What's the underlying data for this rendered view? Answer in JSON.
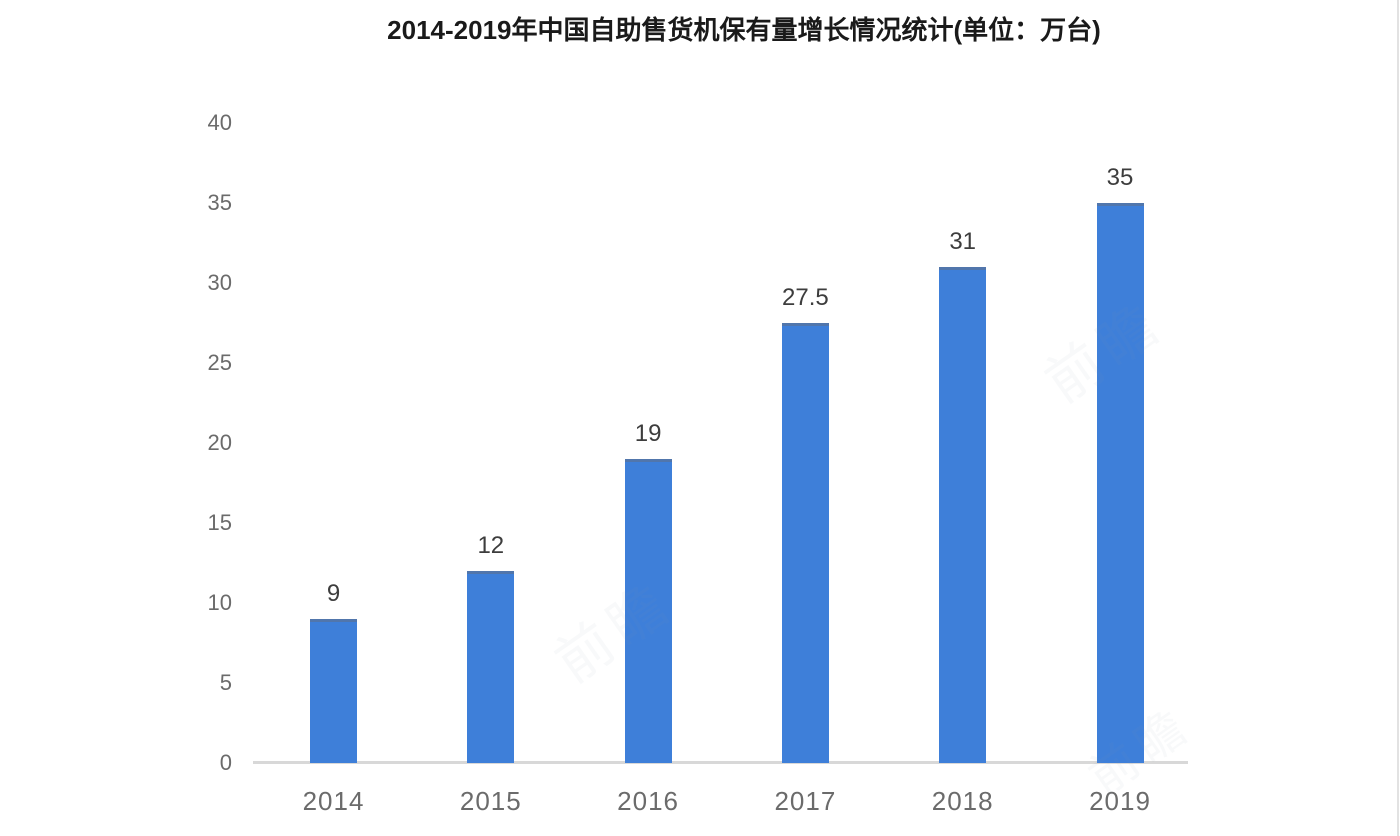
{
  "chart_data": {
    "type": "bar",
    "title": "2014-2019年中国自助售货机保有量增长情况统计(单位：万台)",
    "categories": [
      "2014",
      "2015",
      "2016",
      "2017",
      "2018",
      "2019"
    ],
    "values": [
      9,
      12,
      19,
      27.5,
      31,
      35
    ],
    "value_labels": [
      "9",
      "12",
      "19",
      "27.5",
      "31",
      "35"
    ],
    "xlabel": "",
    "ylabel": "",
    "ylim": [
      0,
      40
    ],
    "yticks": [
      0,
      5,
      10,
      15,
      20,
      25,
      30,
      35,
      40
    ],
    "grid": false,
    "legend": false,
    "bar_color": "#3e7fd9",
    "bar_top_edge_color": "#607086",
    "axis_line_color": "#d8d8d8",
    "tick_label_color": "#6b6b6b",
    "value_label_color": "#3d3d3d",
    "title_color": "#1a1a1a"
  },
  "watermark": {
    "text": "前瞻",
    "color": "#8d9ab0"
  }
}
